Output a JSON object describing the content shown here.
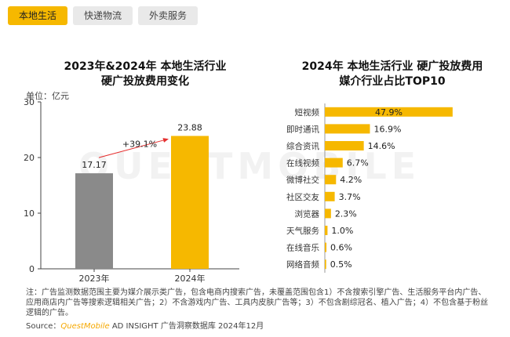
{
  "tabs": [
    {
      "label": "本地生活",
      "active": true
    },
    {
      "label": "快递物流",
      "active": false
    },
    {
      "label": "外卖服务",
      "active": false
    }
  ],
  "watermark": "QUESTMOBILE",
  "chart_data": [
    {
      "type": "bar",
      "title_line1": "2023年&2024年 本地生活行业",
      "title_line2": "硬广投放费用变化",
      "ylabel": "单位：亿元",
      "ylim": [
        0,
        30
      ],
      "yticks": [
        0,
        10,
        20,
        30
      ],
      "categories": [
        "2023年",
        "2024年"
      ],
      "values": [
        17.17,
        23.88
      ],
      "value_labels": [
        "17.17",
        "23.88"
      ],
      "growth_label": "+39.1%",
      "colors": [
        "#8a8a8a",
        "#f6b800"
      ],
      "arrow_color": "#e53030"
    },
    {
      "type": "bar",
      "orientation": "horizontal",
      "title_line1": "2024年 本地生活行业 硬广投放费用",
      "title_line2": "媒介行业占比TOP10",
      "categories": [
        "短视频",
        "即时通讯",
        "综合资讯",
        "在线视频",
        "微博社交",
        "社区交友",
        "浏览器",
        "天气服务",
        "在线音乐",
        "网络音频"
      ],
      "values": [
        47.9,
        16.9,
        14.6,
        6.7,
        4.2,
        3.7,
        2.3,
        1.0,
        0.6,
        0.5
      ],
      "value_labels": [
        "47.9%",
        "16.9%",
        "14.6%",
        "6.7%",
        "4.2%",
        "3.7%",
        "2.3%",
        "1.0%",
        "0.6%",
        "0.5%"
      ],
      "color": "#f6b800"
    }
  ],
  "note": "注：广告监测数据范围主要为媒介展示类广告，包含电商内搜索广告，未覆盖范围包含1）不含搜索引擎广告、生活服务平台内广告、应用商店内广告等搜索逻辑相关广告；2）不含游戏内广告、工具内皮肤广告等；3）不包含剧综冠名、植入广告；4）不包含基于粉丝逻辑的广告。",
  "source": {
    "prefix": "Source：",
    "brand": "QuestMobile",
    "suffix": " AD INSIGHT 广告洞察数据库 2024年12月"
  }
}
